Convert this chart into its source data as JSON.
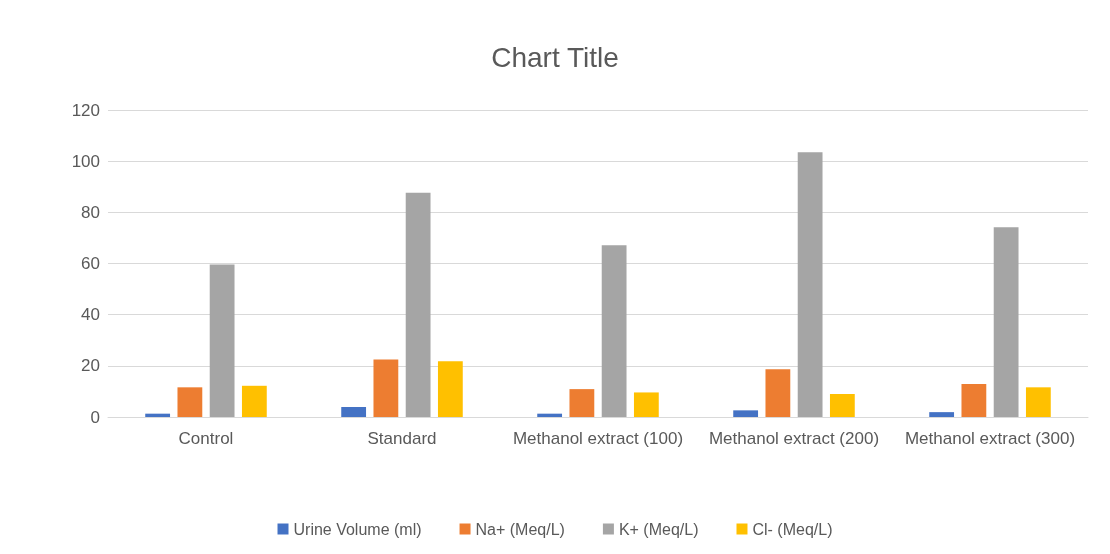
{
  "chart_data": {
    "type": "bar",
    "title": "Chart Title",
    "categories": [
      "Control",
      "Standard",
      "Methanol extract (100)",
      "Methanol extract (200)",
      "Methanol extract (300)"
    ],
    "series": [
      {
        "name": "Urine Volume (ml)",
        "color": "#4472c4",
        "values": [
          1.3,
          3.9,
          1.3,
          2.6,
          1.9
        ]
      },
      {
        "name": "Na+ (Meq/L)",
        "color": "#ed7d31",
        "values": [
          11.6,
          22.5,
          10.9,
          18.7,
          12.9
        ]
      },
      {
        "name": "K+ (Meq/L)",
        "color": "#a5a5a5",
        "values": [
          59.6,
          87.7,
          67.1,
          103.5,
          74.2
        ]
      },
      {
        "name": "Cl- (Meq/L)",
        "color": "#ffc000",
        "values": [
          12.2,
          21.8,
          9.6,
          9.0,
          11.6
        ]
      }
    ],
    "ylim": [
      0,
      120
    ],
    "yticks": [
      0,
      20,
      40,
      60,
      80,
      100,
      120
    ],
    "grid": "y",
    "legend": "bottom"
  }
}
